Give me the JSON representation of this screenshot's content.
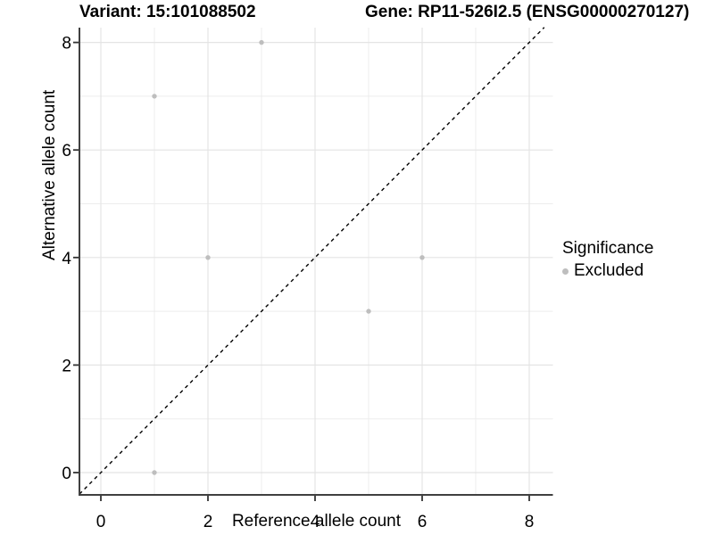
{
  "chart_data": {
    "type": "scatter",
    "title_left": "Variant: 15:101088502",
    "title_right": "Gene: RP11-526I2.5 (ENSG00000270127)",
    "xlabel": "Reference allele count",
    "ylabel": "Alternative allele count",
    "x_ticks": [
      0,
      2,
      4,
      6,
      8
    ],
    "y_ticks": [
      0,
      2,
      4,
      6,
      8
    ],
    "x_minor": [
      1,
      3,
      5,
      7
    ],
    "y_minor": [
      1,
      3,
      5,
      7
    ],
    "xlim": [
      -0.4,
      8.44
    ],
    "ylim": [
      -0.42,
      8.28
    ],
    "grid": "major+minor",
    "identity_line": {
      "style": "dashed",
      "slope": 1,
      "intercept": 0,
      "color": "#000000"
    },
    "series": [
      {
        "name": "Excluded",
        "color": "#bebebe",
        "points": [
          [
            1,
            0
          ],
          [
            5,
            3
          ],
          [
            2,
            4
          ],
          [
            6,
            4
          ],
          [
            1,
            7
          ],
          [
            3,
            8
          ]
        ]
      }
    ],
    "legend": {
      "title": "Significance",
      "position": "right",
      "items": [
        {
          "label": "Excluded",
          "color": "#bebebe",
          "marker": "circle"
        }
      ]
    },
    "colors": {
      "grid_major": "#e4e4e4",
      "grid_minor": "#ededed",
      "axis_line": "#404040",
      "tick_mark": "#333333",
      "text": "#000000",
      "background": "#ffffff"
    }
  }
}
